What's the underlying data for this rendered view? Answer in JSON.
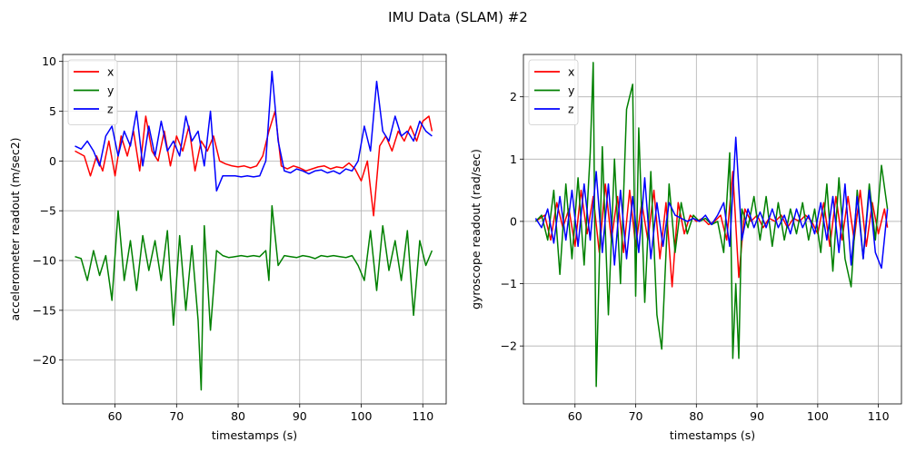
{
  "figure": {
    "title": "IMU Data (SLAM) #2"
  },
  "colors": {
    "x": "#ff0000",
    "y": "#008000",
    "z": "#0000ff",
    "grid": "#b0b0b0"
  },
  "chart_data": [
    {
      "type": "line",
      "xlabel": "timestamps (s)",
      "ylabel": "accelerometer readout (m/sec2)",
      "xlim": [
        51.5,
        113.8
      ],
      "ylim": [
        -24.4,
        10.7
      ],
      "xticks": [
        60,
        70,
        80,
        90,
        100,
        110
      ],
      "yticks": [
        -20,
        -15,
        -10,
        -5,
        0,
        5,
        10
      ],
      "grid": true,
      "legend_position": "upper-left",
      "series": [
        {
          "name": "x",
          "color_key": "x",
          "x": [
            53.5,
            55,
            56,
            57,
            58,
            59,
            60,
            61,
            62,
            63,
            64,
            65,
            66,
            67,
            68,
            69,
            70,
            71,
            72,
            73,
            74,
            75,
            76,
            77,
            78,
            79,
            80,
            81,
            82,
            83,
            84,
            85,
            86,
            87,
            88,
            89,
            90,
            91,
            92,
            93,
            94,
            95,
            96,
            97,
            98,
            99,
            100,
            101,
            102,
            103,
            104,
            105,
            106,
            107,
            108,
            109,
            110,
            111,
            111.5
          ],
          "values": [
            1.0,
            0.5,
            -1.5,
            0.5,
            -1.0,
            2.0,
            -1.5,
            2.5,
            0.5,
            3.0,
            -1.0,
            4.5,
            1.0,
            0.0,
            3.0,
            -0.5,
            2.5,
            1.0,
            3.5,
            -1.0,
            2.0,
            1.0,
            2.5,
            0.0,
            -0.3,
            -0.5,
            -0.6,
            -0.5,
            -0.7,
            -0.5,
            0.5,
            3.0,
            5.0,
            -0.5,
            -0.8,
            -0.5,
            -0.7,
            -1.0,
            -0.8,
            -0.6,
            -0.5,
            -0.8,
            -0.6,
            -0.7,
            -0.2,
            -0.8,
            -2.0,
            0.0,
            -5.5,
            1.5,
            2.5,
            1.0,
            3.0,
            2.0,
            3.5,
            2.0,
            4.0,
            4.5,
            3.0
          ]
        },
        {
          "name": "y",
          "color_key": "y",
          "x": [
            53.5,
            54.5,
            55.5,
            56.5,
            57.5,
            58.5,
            59.5,
            60.5,
            61.5,
            62.5,
            63.5,
            64.5,
            65.5,
            66.5,
            67.5,
            68.5,
            69.5,
            70.5,
            71.5,
            72.5,
            73.5,
            74,
            74.5,
            75.5,
            76.5,
            77.5,
            78.5,
            79.5,
            80.5,
            81.5,
            82.5,
            83.5,
            84.5,
            85,
            85.5,
            86.5,
            87.5,
            88.5,
            89.5,
            90.5,
            91.5,
            92.5,
            93.5,
            94.5,
            95.5,
            96.5,
            97.5,
            98.5,
            99.5,
            100.5,
            101.5,
            102.5,
            103.5,
            104.5,
            105.5,
            106.5,
            107.5,
            108.5,
            109.5,
            110.5,
            111.5
          ],
          "values": [
            -9.6,
            -9.8,
            -12.0,
            -9.0,
            -11.5,
            -9.5,
            -14.0,
            -5.0,
            -12.0,
            -8.0,
            -13.0,
            -7.5,
            -11.0,
            -8.0,
            -12.0,
            -7.0,
            -16.5,
            -7.5,
            -15.0,
            -8.5,
            -16.0,
            -23.0,
            -6.5,
            -17.0,
            -9.0,
            -9.5,
            -9.7,
            -9.6,
            -9.5,
            -9.6,
            -9.5,
            -9.6,
            -9.0,
            -12.0,
            -4.5,
            -10.5,
            -9.5,
            -9.6,
            -9.7,
            -9.5,
            -9.6,
            -9.8,
            -9.5,
            -9.6,
            -9.5,
            -9.6,
            -9.7,
            -9.5,
            -10.5,
            -12.0,
            -7.0,
            -13.0,
            -6.5,
            -11.0,
            -8.0,
            -12.0,
            -7.0,
            -15.5,
            -8.0,
            -10.5,
            -9.0
          ]
        },
        {
          "name": "z",
          "color_key": "z",
          "x": [
            53.5,
            54.5,
            55.5,
            56.5,
            57.5,
            58.5,
            59.5,
            60.5,
            61.5,
            62.5,
            63.5,
            64.5,
            65.5,
            66.5,
            67.5,
            68.5,
            69.5,
            70.5,
            71.5,
            72.5,
            73.5,
            74.5,
            75.5,
            76.5,
            77.5,
            78.5,
            79.5,
            80.5,
            81.5,
            82.5,
            83.5,
            84.5,
            85.5,
            86.5,
            87.5,
            88.5,
            89.5,
            90.5,
            91.5,
            92.5,
            93.5,
            94.5,
            95.5,
            96.5,
            97.5,
            98.5,
            99.5,
            100.5,
            101.5,
            102.5,
            103.5,
            104.5,
            105.5,
            106.5,
            107.5,
            108.5,
            109.5,
            110.5,
            111.5
          ],
          "values": [
            1.5,
            1.2,
            2.0,
            1.0,
            -0.5,
            2.5,
            3.5,
            0.5,
            3.0,
            1.5,
            5.0,
            -0.5,
            3.5,
            0.5,
            4.0,
            1.0,
            2.0,
            0.5,
            4.5,
            2.0,
            3.0,
            -0.5,
            5.0,
            -3.0,
            -1.5,
            -1.5,
            -1.5,
            -1.6,
            -1.5,
            -1.6,
            -1.5,
            0.0,
            9.0,
            2.0,
            -1.0,
            -1.2,
            -0.8,
            -1.0,
            -1.3,
            -1.0,
            -0.9,
            -1.2,
            -1.0,
            -1.3,
            -0.8,
            -1.0,
            0.0,
            3.5,
            1.0,
            8.0,
            3.0,
            2.0,
            4.5,
            2.5,
            3.0,
            2.0,
            4.0,
            3.0,
            2.5
          ]
        }
      ]
    },
    {
      "type": "line",
      "xlabel": "timestamps (s)",
      "ylabel": "gyroscope readout (rad/sec)",
      "xlim": [
        51.5,
        113.8
      ],
      "ylim": [
        -2.93,
        2.68
      ],
      "xticks": [
        60,
        70,
        80,
        90,
        100,
        110
      ],
      "yticks": [
        -2,
        -1,
        0,
        1,
        2
      ],
      "grid": true,
      "legend_position": "upper-left",
      "series": [
        {
          "name": "x",
          "color_key": "x",
          "x": [
            53.5,
            55,
            56,
            57,
            58,
            59,
            60,
            61,
            62,
            63,
            64,
            65,
            66,
            67,
            68,
            69,
            70,
            71,
            72,
            73,
            74,
            75,
            76,
            77,
            78,
            79,
            80,
            81,
            82,
            83,
            84,
            85,
            86,
            87,
            88,
            89,
            90,
            91,
            92,
            93,
            94,
            95,
            96,
            97,
            98,
            99,
            100,
            101,
            102,
            103,
            104,
            105,
            106,
            107,
            108,
            109,
            110,
            111,
            111.5
          ],
          "values": [
            0.0,
            0.1,
            -0.3,
            0.3,
            -0.1,
            0.2,
            -0.4,
            0.5,
            -0.2,
            0.4,
            -0.5,
            0.6,
            -0.3,
            0.4,
            -0.5,
            0.5,
            -0.4,
            0.3,
            -0.3,
            0.5,
            -0.6,
            0.3,
            -1.05,
            0.3,
            -0.2,
            0.1,
            0.0,
            0.05,
            -0.05,
            0.0,
            0.1,
            -0.3,
            0.8,
            -0.9,
            0.2,
            0.0,
            0.1,
            -0.1,
            0.05,
            0.0,
            0.1,
            -0.1,
            0.05,
            0.0,
            0.1,
            0.0,
            -0.2,
            0.3,
            -0.4,
            0.4,
            -0.3,
            0.4,
            -0.3,
            0.5,
            -0.4,
            0.3,
            -0.2,
            0.2,
            -0.1
          ]
        },
        {
          "name": "y",
          "color_key": "y",
          "x": [
            53.5,
            54.5,
            55.5,
            56.5,
            57.5,
            58.5,
            59.5,
            60.5,
            61.5,
            62.5,
            63,
            63.5,
            64.5,
            65.5,
            66.5,
            67.5,
            68.5,
            69.5,
            70,
            70.5,
            71.5,
            72.5,
            73.5,
            74.3,
            75.5,
            76.5,
            77.5,
            78.5,
            79.5,
            80.5,
            81.5,
            82.5,
            83.5,
            84.5,
            85.5,
            86,
            86.5,
            87,
            87.5,
            88.5,
            89.5,
            90.5,
            91.5,
            92.5,
            93.5,
            94.5,
            95.5,
            96.5,
            97.5,
            98.5,
            99.5,
            100.5,
            101.5,
            102.5,
            103.5,
            104.5,
            105.5,
            106.5,
            107.5,
            108.5,
            109.5,
            110.5,
            111.5
          ],
          "values": [
            0.0,
            0.1,
            -0.3,
            0.5,
            -0.85,
            0.6,
            -0.6,
            0.7,
            -0.7,
            1.1,
            2.55,
            -2.65,
            1.2,
            -1.5,
            1.0,
            -1.0,
            1.8,
            2.2,
            -1.2,
            1.5,
            -1.3,
            0.8,
            -1.5,
            -2.05,
            0.6,
            -0.5,
            0.3,
            -0.2,
            0.1,
            0.0,
            0.05,
            -0.05,
            0.0,
            -0.5,
            1.1,
            -2.2,
            -1.0,
            -2.2,
            0.2,
            -0.1,
            0.4,
            -0.3,
            0.4,
            -0.4,
            0.3,
            -0.3,
            0.2,
            -0.2,
            0.3,
            -0.3,
            0.2,
            -0.5,
            0.6,
            -0.8,
            0.7,
            -0.6,
            -1.05,
            0.5,
            -0.6,
            0.6,
            -0.3,
            0.9,
            0.2
          ]
        },
        {
          "name": "z",
          "color_key": "z",
          "x": [
            53.5,
            54.5,
            55.5,
            56.5,
            57.5,
            58.5,
            59.5,
            60.5,
            61.5,
            62.5,
            63.5,
            64.5,
            65.5,
            66.5,
            67.5,
            68.5,
            69.5,
            70.5,
            71.5,
            72.5,
            73.5,
            74.5,
            75.5,
            76.5,
            77.5,
            78.5,
            79.5,
            80.5,
            81.5,
            82.5,
            83.5,
            84.5,
            85.5,
            86.5,
            87.5,
            88.5,
            89.5,
            90.5,
            91.5,
            92.5,
            93.5,
            94.5,
            95.5,
            96.5,
            97.5,
            98.5,
            99.5,
            100.5,
            101.5,
            102.5,
            103.5,
            104.5,
            105.5,
            106.5,
            107.5,
            108.5,
            109.5,
            110.5,
            111.5
          ],
          "values": [
            0.05,
            -0.1,
            0.2,
            -0.35,
            0.4,
            -0.3,
            0.5,
            -0.4,
            0.6,
            -0.3,
            0.8,
            -0.5,
            0.6,
            -0.7,
            0.5,
            -0.6,
            0.4,
            -0.5,
            0.7,
            -0.6,
            0.3,
            -0.4,
            0.3,
            0.1,
            0.05,
            0.0,
            0.05,
            0.0,
            0.1,
            -0.05,
            0.1,
            0.3,
            -0.4,
            1.35,
            -0.3,
            0.2,
            -0.1,
            0.15,
            -0.1,
            0.2,
            -0.1,
            0.1,
            -0.2,
            0.2,
            -0.1,
            0.1,
            -0.2,
            0.3,
            -0.3,
            0.4,
            -0.5,
            0.6,
            -0.7,
            0.4,
            -0.6,
            0.5,
            -0.5,
            -0.75,
            0.2
          ]
        }
      ]
    }
  ]
}
